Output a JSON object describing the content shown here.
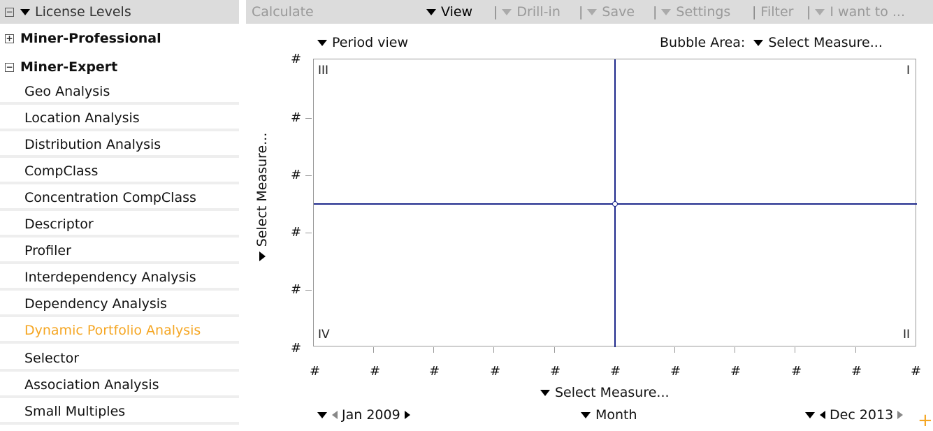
{
  "sidebar": {
    "header_box": "−",
    "header_label": "License Levels",
    "groups": [
      {
        "box": "+",
        "label": "Miner-Professional"
      },
      {
        "box": "−",
        "label": "Miner-Expert"
      }
    ],
    "items": [
      {
        "label": "Geo Analysis"
      },
      {
        "label": "Location Analysis"
      },
      {
        "label": "Distribution Analysis"
      },
      {
        "label": "CompClass"
      },
      {
        "label": "Concentration CompClass"
      },
      {
        "label": "Descriptor"
      },
      {
        "label": "Profiler"
      },
      {
        "label": "Interdependency Analysis"
      },
      {
        "label": "Dependency Analysis"
      },
      {
        "label": "Dynamic Portfolio Analysis"
      },
      {
        "label": "Selector"
      },
      {
        "label": "Association Analysis"
      },
      {
        "label": "Small Multiples"
      }
    ],
    "active_item": "Dynamic Portfolio Analysis",
    "active_color": "#f5a623"
  },
  "toolbar": {
    "calculate": "Calculate",
    "view": "View",
    "drill_in": "Drill-in",
    "save": "Save",
    "settings": "Settings",
    "filter": "Filter",
    "i_want_to": "I want to ...",
    "separator": "|"
  },
  "chart": {
    "period_view": "Period view",
    "bubble_area_label": "Bubble Area:",
    "bubble_area_measure": "Select Measure...",
    "y_measure": "Select Measure...",
    "x_measure": "Select Measure...",
    "quadrants": {
      "top_left": "III",
      "top_right": "I",
      "bottom_left": "IV",
      "bottom_right": "II"
    },
    "tick_label": "#",
    "axis_color": "#1f2a8c",
    "start_period": "Jan 2009",
    "granularity": "Month",
    "end_period": "Dec 2013",
    "add_icon": "plus-icon"
  },
  "chart_data": {
    "type": "scatter",
    "title": "",
    "xlabel": "Select Measure...",
    "ylabel": "Select Measure...",
    "x_tick_labels": [
      "#",
      "#",
      "#",
      "#",
      "#",
      "#",
      "#",
      "#",
      "#",
      "#",
      "#"
    ],
    "y_tick_labels": [
      "#",
      "#",
      "#",
      "#",
      "#",
      "#"
    ],
    "quadrant_labels": [
      "III",
      "I",
      "IV",
      "II"
    ],
    "series": [],
    "grid": false
  }
}
